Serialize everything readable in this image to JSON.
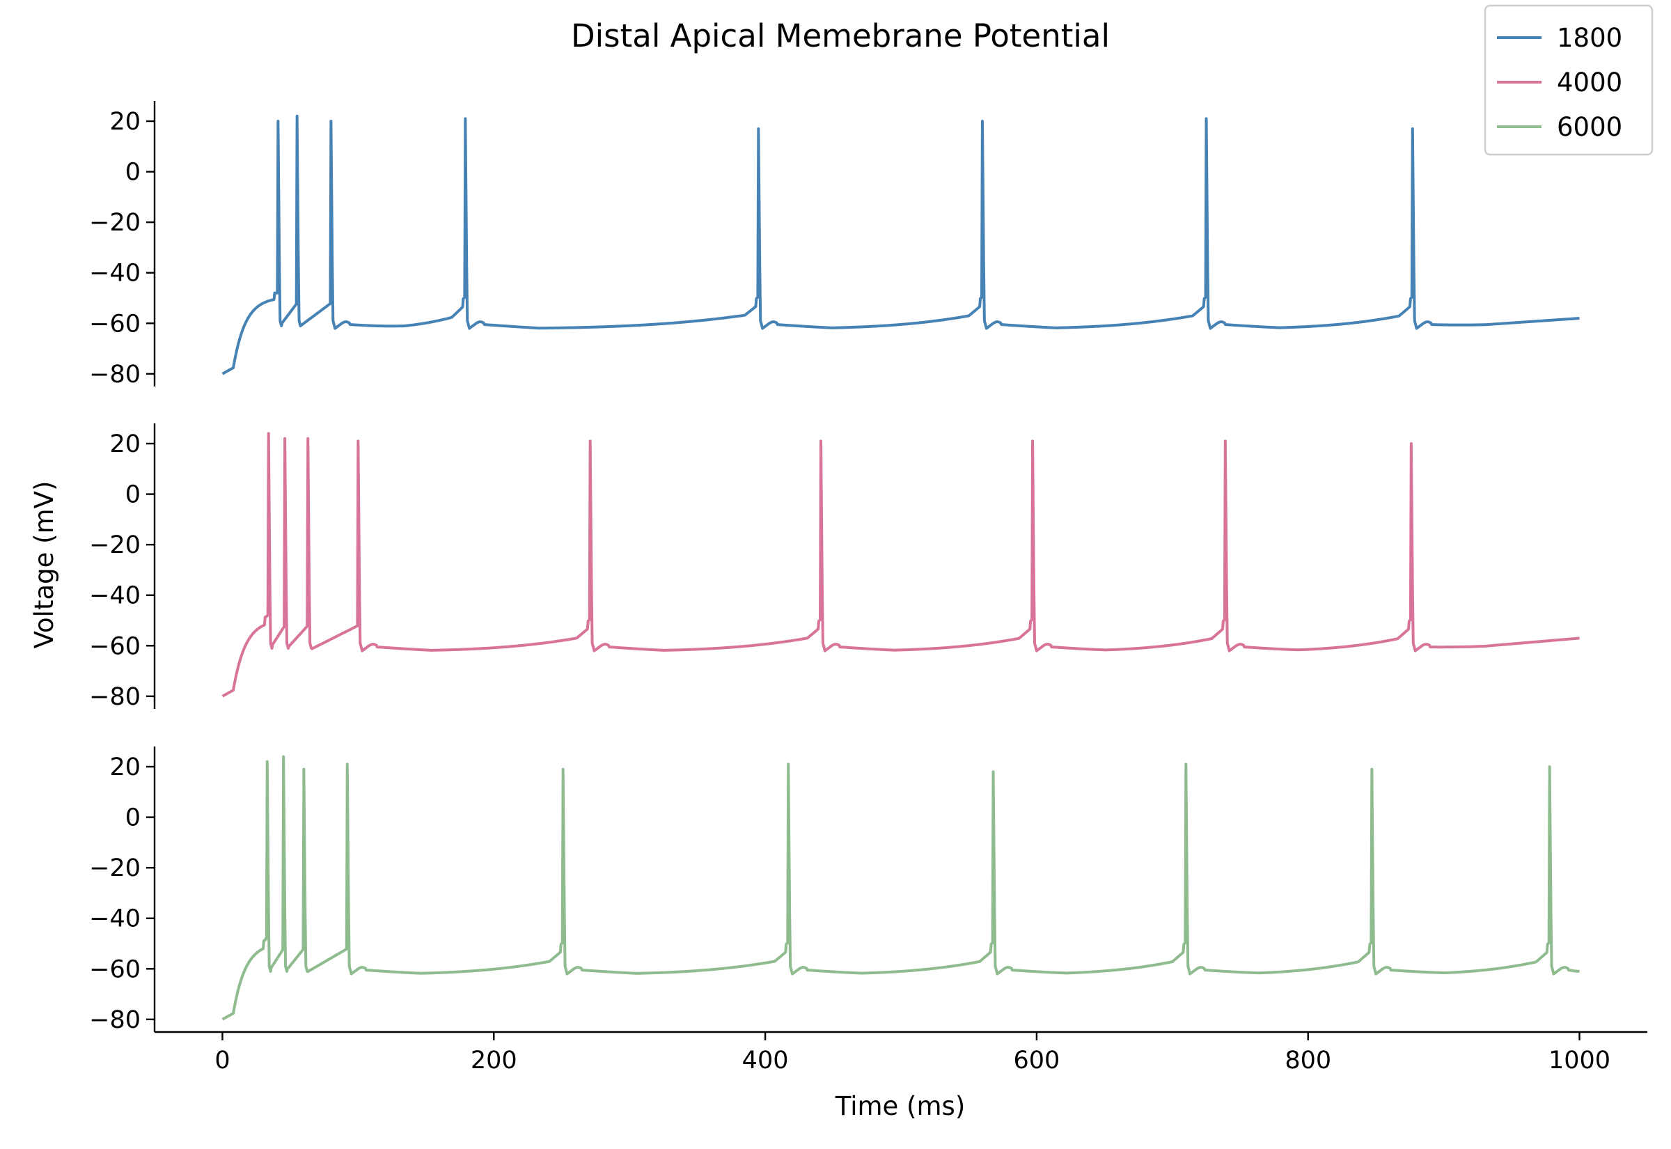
{
  "chart_data": {
    "type": "line",
    "title": "Distal Apical Memebrane Potential",
    "xlabel": "Time (ms)",
    "ylabel": "Voltage (mV)",
    "xlim": [
      -50,
      1050
    ],
    "x_ticks": [
      0,
      200,
      400,
      600,
      800,
      1000
    ],
    "x_tick_labels": [
      "0",
      "200",
      "400",
      "600",
      "800",
      "1000"
    ],
    "ylim": [
      -85,
      28
    ],
    "y_ticks": [
      -80,
      -60,
      -40,
      -20,
      0,
      20
    ],
    "y_tick_labels": [
      "−80",
      "−60",
      "−40",
      "−20",
      "0",
      "20"
    ],
    "shared_x": true,
    "grid": false,
    "legend": {
      "placement": "top-right",
      "entries": [
        "1800",
        "4000",
        "6000"
      ]
    },
    "series": [
      {
        "name": "1800",
        "color": "#4682b4",
        "resting_start": -80,
        "spike_times": [
          41,
          55,
          80,
          179,
          395,
          560,
          725,
          877
        ],
        "spike_peaks": [
          20,
          22,
          20,
          21,
          17,
          20,
          21,
          17
        ],
        "end_value": -58
      },
      {
        "name": "4000",
        "color": "#d8749a",
        "resting_start": -80,
        "spike_times": [
          34,
          46,
          63,
          100,
          271,
          441,
          597,
          739,
          876
        ],
        "spike_peaks": [
          24,
          22,
          22,
          21,
          21,
          21,
          21,
          21,
          20
        ],
        "end_value": -57
      },
      {
        "name": "6000",
        "color": "#8fbc8f",
        "resting_start": -80,
        "spike_times": [
          33,
          45,
          60,
          92,
          251,
          417,
          568,
          710,
          847,
          978
        ],
        "spike_peaks": [
          22,
          24,
          19,
          21,
          19,
          21,
          18,
          21,
          19,
          20
        ],
        "end_value": -61
      }
    ]
  }
}
